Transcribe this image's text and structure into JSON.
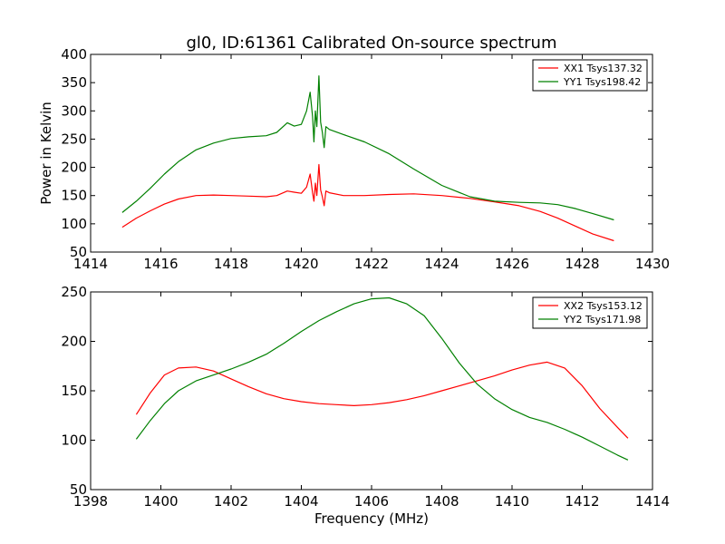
{
  "chart_data": [
    {
      "type": "line",
      "title": "gl0, ID:61361 Calibrated On-source spectrum",
      "xlabel": "",
      "ylabel": "Power in Kelvin",
      "xlim": [
        1414,
        1430
      ],
      "ylim": [
        50,
        400
      ],
      "xticks": [
        "1414",
        "1416",
        "1418",
        "1420",
        "1422",
        "1424",
        "1426",
        "1428",
        "1430"
      ],
      "yticks": [
        "50",
        "100",
        "150",
        "200",
        "250",
        "300",
        "350",
        "400"
      ],
      "legend_position": "top-right",
      "grid": false,
      "series": [
        {
          "name": "XX1 Tsys137.32",
          "color": "#ff0000",
          "x": [
            1414.9,
            1415.3,
            1415.7,
            1416.1,
            1416.5,
            1417.0,
            1417.5,
            1418.0,
            1418.5,
            1419.0,
            1419.3,
            1419.6,
            1419.8,
            1420.0,
            1420.15,
            1420.25,
            1420.32,
            1420.36,
            1420.4,
            1420.44,
            1420.5,
            1420.55,
            1420.6,
            1420.65,
            1420.7,
            1420.8,
            1421.2,
            1421.8,
            1422.5,
            1423.2,
            1424.0,
            1424.8,
            1425.5,
            1426.2,
            1426.8,
            1427.3,
            1427.8,
            1428.3,
            1428.9
          ],
          "values": [
            94,
            110,
            123,
            135,
            144,
            150,
            151,
            150,
            149,
            148,
            150,
            158,
            156,
            154,
            165,
            188,
            155,
            140,
            172,
            150,
            205,
            160,
            148,
            132,
            158,
            155,
            150,
            150,
            152,
            153,
            150,
            145,
            139,
            132,
            122,
            110,
            96,
            82,
            70
          ]
        },
        {
          "name": "YY1 Tsys198.42",
          "color": "#008000",
          "x": [
            1414.9,
            1415.3,
            1415.7,
            1416.1,
            1416.5,
            1417.0,
            1417.5,
            1418.0,
            1418.5,
            1419.0,
            1419.3,
            1419.6,
            1419.8,
            1420.0,
            1420.15,
            1420.25,
            1420.32,
            1420.36,
            1420.4,
            1420.44,
            1420.5,
            1420.55,
            1420.6,
            1420.65,
            1420.7,
            1420.8,
            1421.2,
            1421.8,
            1422.5,
            1423.2,
            1424.0,
            1424.8,
            1425.5,
            1426.2,
            1426.8,
            1427.3,
            1427.8,
            1428.3,
            1428.9
          ],
          "values": [
            120,
            140,
            163,
            188,
            210,
            231,
            243,
            251,
            254,
            256,
            262,
            279,
            273,
            276,
            300,
            333,
            290,
            245,
            300,
            272,
            362,
            280,
            262,
            235,
            272,
            267,
            258,
            245,
            224,
            197,
            168,
            148,
            140,
            138,
            137,
            134,
            127,
            118,
            107
          ]
        }
      ]
    },
    {
      "type": "line",
      "title": "",
      "xlabel": "Frequency (MHz)",
      "ylabel": "",
      "xlim": [
        1398,
        1414
      ],
      "ylim": [
        50,
        250
      ],
      "xticks": [
        "1398",
        "1400",
        "1402",
        "1404",
        "1406",
        "1408",
        "1410",
        "1412",
        "1414"
      ],
      "yticks": [
        "50",
        "100",
        "150",
        "200",
        "250"
      ],
      "legend_position": "top-right",
      "grid": false,
      "series": [
        {
          "name": "XX2 Tsys153.12",
          "color": "#ff0000",
          "x": [
            1399.3,
            1399.7,
            1400.1,
            1400.5,
            1401.0,
            1401.5,
            1402.0,
            1402.5,
            1403.0,
            1403.5,
            1404.0,
            1404.5,
            1405.0,
            1405.5,
            1406.0,
            1406.5,
            1407.0,
            1407.5,
            1408.0,
            1408.5,
            1409.0,
            1409.5,
            1410.0,
            1410.5,
            1411.0,
            1411.5,
            1412.0,
            1412.5,
            1413.0,
            1413.3
          ],
          "values": [
            126,
            148,
            166,
            173,
            174,
            170,
            162,
            154,
            147,
            142,
            139,
            137,
            136,
            135,
            136,
            138,
            141,
            145,
            150,
            155,
            160,
            165,
            171,
            176,
            179,
            173,
            155,
            132,
            113,
            102
          ]
        },
        {
          "name": "YY2 Tsys171.98",
          "color": "#008000",
          "x": [
            1399.3,
            1399.7,
            1400.1,
            1400.5,
            1401.0,
            1401.5,
            1402.0,
            1402.5,
            1403.0,
            1403.5,
            1404.0,
            1404.5,
            1405.0,
            1405.5,
            1406.0,
            1406.5,
            1407.0,
            1407.5,
            1408.0,
            1408.5,
            1409.0,
            1409.5,
            1410.0,
            1410.5,
            1411.0,
            1411.5,
            1412.0,
            1412.5,
            1413.0,
            1413.3
          ],
          "values": [
            101,
            120,
            137,
            150,
            160,
            166,
            172,
            179,
            187,
            198,
            210,
            221,
            230,
            238,
            243,
            244,
            238,
            226,
            203,
            178,
            157,
            142,
            131,
            123,
            118,
            111,
            103,
            94,
            85,
            80
          ]
        }
      ]
    }
  ]
}
